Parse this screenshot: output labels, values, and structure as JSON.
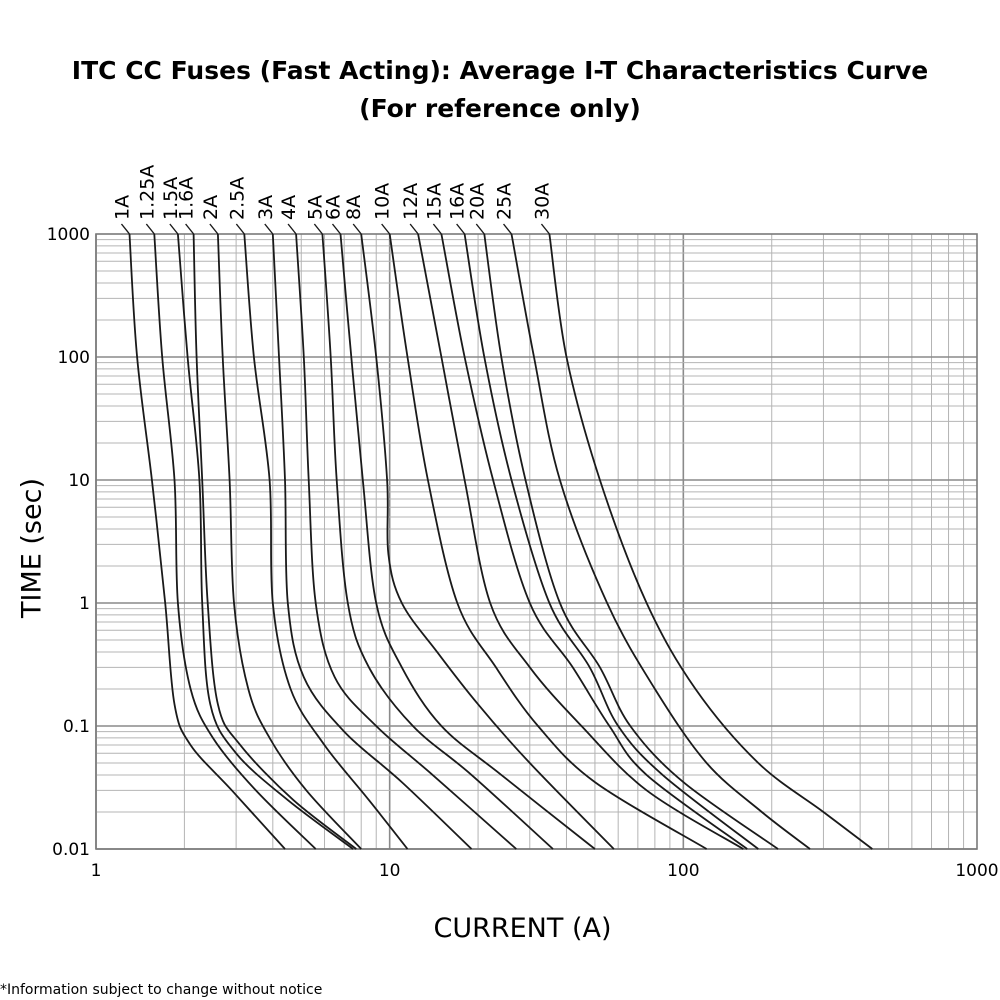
{
  "chart_data": {
    "type": "line",
    "title": "ITC CC Fuses (Fast Acting): Average I-T Characteristics Curve",
    "subtitle": "(For reference only)",
    "xlabel": "CURRENT (A)",
    "ylabel": "TIME (sec)",
    "xscale": "log",
    "yscale": "log",
    "xlim": [
      1,
      1000
    ],
    "ylim": [
      0.01,
      1000
    ],
    "xticks": [
      "1",
      "10",
      "100",
      "1000"
    ],
    "yticks": [
      "0.01",
      "0.1",
      "1",
      "10",
      "100",
      "1000"
    ],
    "grid": true,
    "series": [
      {
        "name": "1A",
        "points": [
          [
            1.3,
            1000
          ],
          [
            1.38,
            100
          ],
          [
            1.55,
            10
          ],
          [
            1.72,
            1
          ],
          [
            1.85,
            0.15
          ],
          [
            2.1,
            0.07
          ],
          [
            2.9,
            0.03
          ],
          [
            4.4,
            0.01
          ]
        ]
      },
      {
        "name": "1.25A",
        "points": [
          [
            1.58,
            1000
          ],
          [
            1.68,
            100
          ],
          [
            1.85,
            10
          ],
          [
            1.9,
            1
          ],
          [
            2.1,
            0.2
          ],
          [
            2.5,
            0.08
          ],
          [
            3.5,
            0.03
          ],
          [
            5.6,
            0.01
          ]
        ]
      },
      {
        "name": "1.5A",
        "points": [
          [
            1.9,
            1000
          ],
          [
            2.05,
            100
          ],
          [
            2.25,
            10
          ],
          [
            2.3,
            1
          ],
          [
            2.45,
            0.15
          ],
          [
            3,
            0.06
          ],
          [
            4.5,
            0.025
          ],
          [
            7.5,
            0.01
          ]
        ]
      },
      {
        "name": "1.6A",
        "points": [
          [
            2.15,
            1000
          ],
          [
            2.2,
            100
          ],
          [
            2.3,
            10
          ],
          [
            2.4,
            1
          ],
          [
            2.6,
            0.15
          ],
          [
            3.1,
            0.07
          ],
          [
            4.7,
            0.025
          ],
          [
            7.7,
            0.01
          ]
        ]
      },
      {
        "name": "2A",
        "points": [
          [
            2.6,
            1000
          ],
          [
            2.7,
            100
          ],
          [
            2.85,
            10
          ],
          [
            2.95,
            1
          ],
          [
            3.3,
            0.2
          ],
          [
            3.9,
            0.08
          ],
          [
            5.2,
            0.03
          ],
          [
            8,
            0.01
          ]
        ]
      },
      {
        "name": "2.5A",
        "points": [
          [
            3.2,
            1000
          ],
          [
            3.45,
            100
          ],
          [
            3.9,
            10
          ],
          [
            4,
            1
          ],
          [
            4.6,
            0.2
          ],
          [
            6,
            0.07
          ],
          [
            8.5,
            0.025
          ],
          [
            11.5,
            0.01
          ]
        ]
      },
      {
        "name": "3A",
        "points": [
          [
            4,
            1000
          ],
          [
            4.2,
            100
          ],
          [
            4.4,
            10
          ],
          [
            4.5,
            1
          ],
          [
            5.1,
            0.25
          ],
          [
            7,
            0.09
          ],
          [
            11,
            0.035
          ],
          [
            19,
            0.01
          ]
        ]
      },
      {
        "name": "4A",
        "points": [
          [
            4.8,
            1000
          ],
          [
            5.1,
            100
          ],
          [
            5.3,
            10
          ],
          [
            5.6,
            1
          ],
          [
            6.5,
            0.25
          ],
          [
            9,
            0.1
          ],
          [
            14,
            0.04
          ],
          [
            27,
            0.01
          ]
        ]
      },
      {
        "name": "5A",
        "points": [
          [
            5.9,
            1000
          ],
          [
            6.3,
            100
          ],
          [
            6.6,
            10
          ],
          [
            7.2,
            1
          ],
          [
            8.5,
            0.3
          ],
          [
            12,
            0.1
          ],
          [
            19,
            0.04
          ],
          [
            36,
            0.01
          ]
        ]
      },
      {
        "name": "6A",
        "points": [
          [
            6.8,
            1000
          ],
          [
            7.4,
            100
          ],
          [
            8.1,
            10
          ],
          [
            9,
            1
          ],
          [
            11,
            0.3
          ],
          [
            15,
            0.1
          ],
          [
            24,
            0.04
          ],
          [
            50,
            0.01
          ]
        ]
      },
      {
        "name": "8A",
        "points": [
          [
            8,
            1000
          ],
          [
            9,
            100
          ],
          [
            9.8,
            10
          ],
          [
            9.9,
            2.5
          ],
          [
            11,
            1
          ],
          [
            14.5,
            0.4
          ],
          [
            20,
            0.15
          ],
          [
            30,
            0.05
          ],
          [
            58,
            0.01
          ]
        ]
      },
      {
        "name": "10A",
        "points": [
          [
            10,
            1000
          ],
          [
            11.5,
            100
          ],
          [
            13.5,
            10
          ],
          [
            17,
            1
          ],
          [
            23,
            0.3
          ],
          [
            32,
            0.1
          ],
          [
            50,
            0.035
          ],
          [
            120,
            0.01
          ]
        ]
      },
      {
        "name": "12A",
        "points": [
          [
            12.5,
            1000
          ],
          [
            15,
            100
          ],
          [
            18,
            10
          ],
          [
            22,
            1
          ],
          [
            30,
            0.3
          ],
          [
            45,
            0.1
          ],
          [
            75,
            0.03
          ],
          [
            160,
            0.01
          ]
        ]
      },
      {
        "name": "15A",
        "points": [
          [
            15,
            1000
          ],
          [
            18,
            100
          ],
          [
            22.5,
            10
          ],
          [
            30,
            1
          ],
          [
            42,
            0.3
          ],
          [
            56,
            0.1
          ],
          [
            75,
            0.04
          ],
          [
            165,
            0.01
          ]
        ]
      },
      {
        "name": "16A",
        "points": [
          [
            18,
            1000
          ],
          [
            21,
            100
          ],
          [
            26,
            10
          ],
          [
            35,
            1
          ],
          [
            48,
            0.3
          ],
          [
            60,
            0.1
          ],
          [
            85,
            0.04
          ],
          [
            180,
            0.01
          ]
        ]
      },
      {
        "name": "20A",
        "points": [
          [
            21,
            1000
          ],
          [
            24,
            100
          ],
          [
            29,
            10
          ],
          [
            38,
            1
          ],
          [
            52,
            0.3
          ],
          [
            66,
            0.1
          ],
          [
            100,
            0.035
          ],
          [
            210,
            0.01
          ]
        ]
      },
      {
        "name": "25A",
        "points": [
          [
            26,
            1000
          ],
          [
            31,
            100
          ],
          [
            38,
            10
          ],
          [
            55,
            1
          ],
          [
            80,
            0.2
          ],
          [
            120,
            0.05
          ],
          [
            185,
            0.02
          ],
          [
            270,
            0.01
          ]
        ]
      },
      {
        "name": "30A",
        "points": [
          [
            35,
            1000
          ],
          [
            40,
            100
          ],
          [
            52,
            10
          ],
          [
            75,
            1
          ],
          [
            110,
            0.2
          ],
          [
            180,
            0.05
          ],
          [
            300,
            0.02
          ],
          [
            440,
            0.01
          ]
        ]
      }
    ]
  },
  "footnote": "*Information subject to change without notice"
}
